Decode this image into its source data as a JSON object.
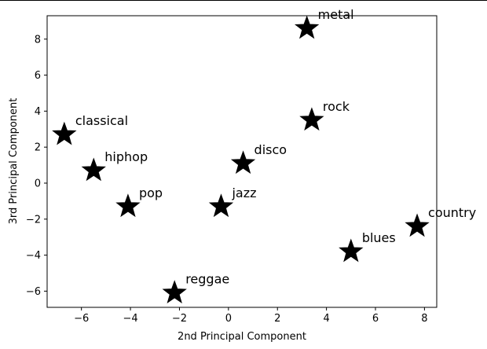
{
  "chart_data": {
    "type": "scatter",
    "title": "",
    "xlabel": "2nd Principal Component",
    "ylabel": "3rd Principal Component",
    "xlim": [
      -7.4,
      8.5
    ],
    "ylim": [
      -6.9,
      9.3
    ],
    "xticks": [
      -6,
      -4,
      -2,
      0,
      2,
      4,
      6,
      8
    ],
    "yticks": [
      -6,
      -4,
      -2,
      0,
      2,
      4,
      6,
      8
    ],
    "grid": false,
    "marker": "star",
    "marker_color": "#000000",
    "points": [
      {
        "label": "metal",
        "x": 3.2,
        "y": 8.6
      },
      {
        "label": "classical",
        "x": -6.7,
        "y": 2.7
      },
      {
        "label": "rock",
        "x": 3.4,
        "y": 3.5
      },
      {
        "label": "hiphop",
        "x": -5.5,
        "y": 0.7
      },
      {
        "label": "disco",
        "x": 0.6,
        "y": 1.1
      },
      {
        "label": "pop",
        "x": -4.1,
        "y": -1.3
      },
      {
        "label": "jazz",
        "x": -0.3,
        "y": -1.3
      },
      {
        "label": "country",
        "x": 7.7,
        "y": -2.4
      },
      {
        "label": "blues",
        "x": 5.0,
        "y": -3.8
      },
      {
        "label": "reggae",
        "x": -2.2,
        "y": -6.1
      }
    ]
  }
}
